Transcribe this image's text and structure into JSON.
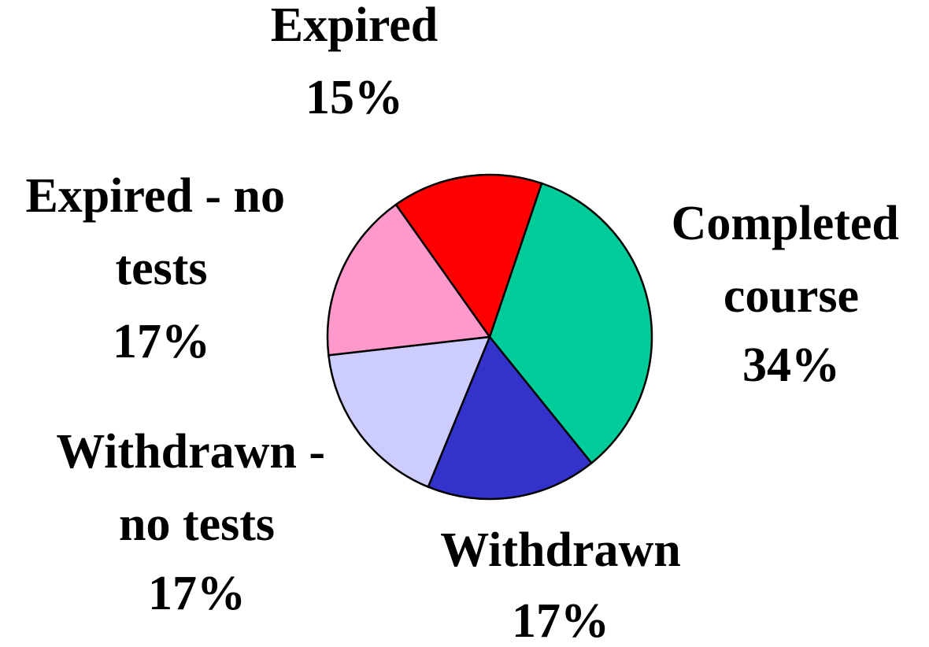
{
  "chart_data": {
    "type": "pie",
    "categories": [
      "Completed course",
      "Withdrawn",
      "Withdrawn - no tests",
      "Expired - no tests",
      "Expired"
    ],
    "values": [
      34,
      17,
      17,
      17,
      15
    ],
    "value_labels": [
      "34%",
      "17%",
      "17%",
      "17%",
      "15%"
    ],
    "colors": [
      "#00cc99",
      "#3333cc",
      "#ccccff",
      "#ff99cc",
      "#ff0000"
    ]
  }
}
